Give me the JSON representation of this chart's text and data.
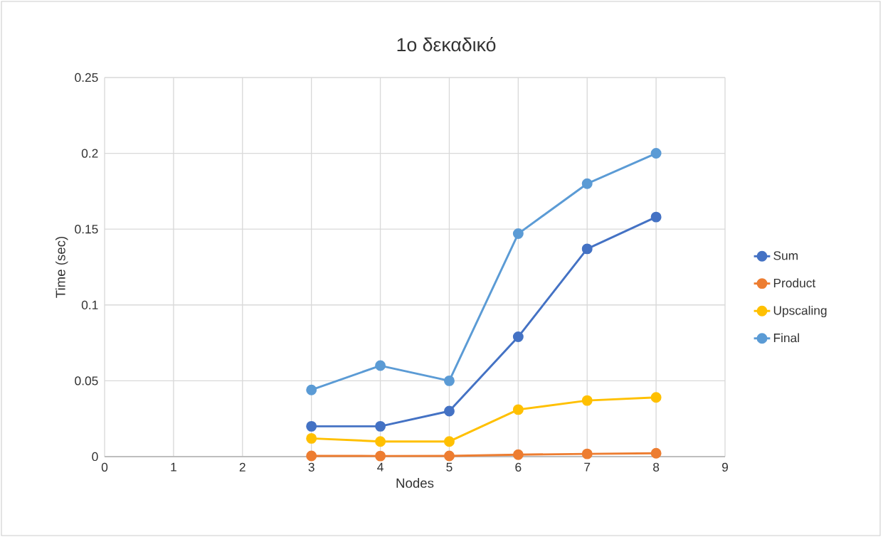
{
  "chart_data": {
    "type": "line",
    "title": "1ο δεκαδικό",
    "xlabel": "Nodes",
    "ylabel": "Time (sec)",
    "x": [
      3,
      4,
      5,
      6,
      7,
      8
    ],
    "series": [
      {
        "name": "Sum",
        "color": "#4472c4",
        "values": [
          0.02,
          0.02,
          0.03,
          0.079,
          0.137,
          0.158
        ]
      },
      {
        "name": "Product",
        "color": "#ed7d31",
        "values": [
          0.0005,
          0.0004,
          0.0005,
          0.0013,
          0.0018,
          0.0022
        ]
      },
      {
        "name": "Upscaling",
        "color": "#ffc000",
        "values": [
          0.012,
          0.01,
          0.01,
          0.031,
          0.037,
          0.039
        ]
      },
      {
        "name": "Final",
        "color": "#5b9bd5",
        "values": [
          0.044,
          0.06,
          0.05,
          0.147,
          0.18,
          0.2
        ]
      }
    ],
    "xlim": [
      0,
      9
    ],
    "ylim": [
      0,
      0.25
    ],
    "xticks": [
      0,
      1,
      2,
      3,
      4,
      5,
      6,
      7,
      8,
      9
    ],
    "yticks": [
      0,
      0.05,
      0.1,
      0.15,
      0.2,
      0.25
    ],
    "grid": true,
    "legend": "right",
    "marker": "circle"
  }
}
